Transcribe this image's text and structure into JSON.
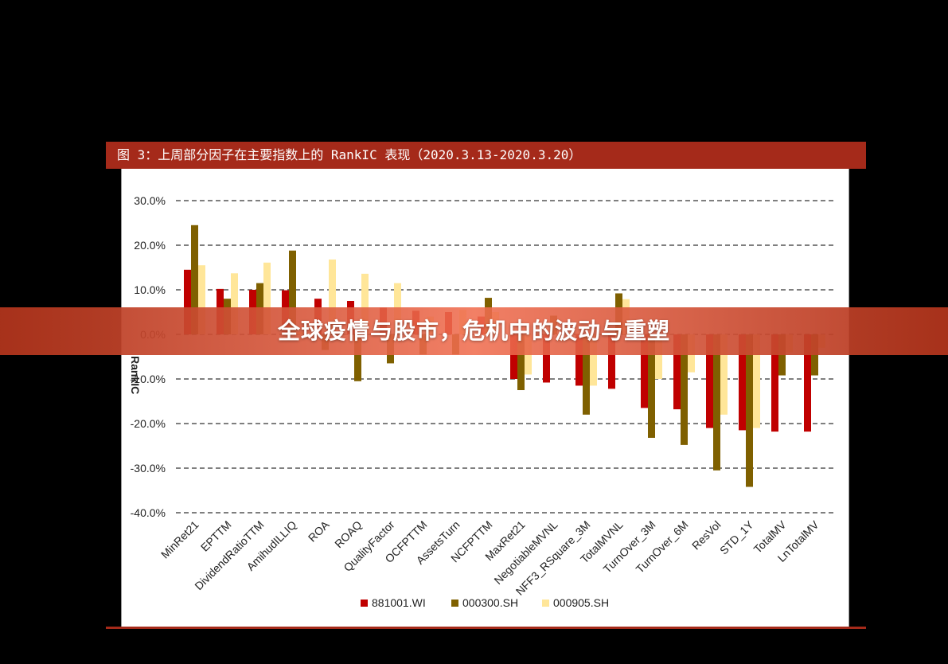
{
  "header": {
    "title": "图 3：上周部分因子在主要指数上的 RankIC 表现（2020.3.13-2020.3.20）"
  },
  "banner": {
    "text": "全球疫情与股市，危机中的波动与重塑"
  },
  "colors": {
    "header_bg": "#A52A1A",
    "series": [
      "#C00000",
      "#7F6000",
      "#FFE699"
    ]
  },
  "chart_data": {
    "type": "bar",
    "ylabel": "RankIC",
    "ylim": [
      -0.4,
      0.3
    ],
    "yticks": [
      0.3,
      0.2,
      0.1,
      0.0,
      -0.1,
      -0.2,
      -0.3,
      -0.4
    ],
    "ytick_labels": [
      "30.0%",
      "20.0%",
      "10.0%",
      "0.0%",
      "-10.0%",
      "-20.0%",
      "-30.0%",
      "-40.0%"
    ],
    "grid": true,
    "legend_position": "bottom",
    "categories": [
      "MinRet21",
      "EPTTM",
      "DividendRatioTTM",
      "AmihudILLIQ",
      "ROA",
      "ROAQ",
      "QualityFactor",
      "OCFPTTM",
      "AssetsTurn",
      "NCFPTTM",
      "MaxRet21",
      "NegotiableMVNL",
      "NFF3_RSquare_3M",
      "TotalMVNL",
      "TurnOver_3M",
      "TurnOver_6M",
      "ResVol",
      "STD_1Y",
      "TotalMV",
      "LnTotalMV"
    ],
    "series": [
      {
        "name": "881001.WI",
        "values": [
          0.145,
          0.102,
          0.1,
          0.099,
          0.08,
          0.075,
          0.06,
          0.053,
          0.05,
          0.04,
          -0.1,
          -0.108,
          -0.115,
          -0.122,
          -0.165,
          -0.168,
          -0.21,
          -0.215,
          -0.218,
          -0.218
        ]
      },
      {
        "name": "000300.SH",
        "values": [
          0.245,
          0.08,
          0.115,
          0.188,
          -0.035,
          -0.105,
          -0.065,
          -0.045,
          -0.045,
          0.082,
          -0.125,
          0.042,
          -0.18,
          0.092,
          -0.232,
          -0.248,
          -0.305,
          -0.342,
          -0.092,
          -0.092
        ]
      },
      {
        "name": "000905.SH",
        "values": [
          0.155,
          0.137,
          0.161,
          0.005,
          0.168,
          0.136,
          0.115,
          0.04,
          0.055,
          0.05,
          -0.09,
          -0.015,
          -0.115,
          0.079,
          -0.1,
          -0.085,
          -0.18,
          -0.21,
          -0.04,
          -0.03
        ]
      }
    ]
  }
}
